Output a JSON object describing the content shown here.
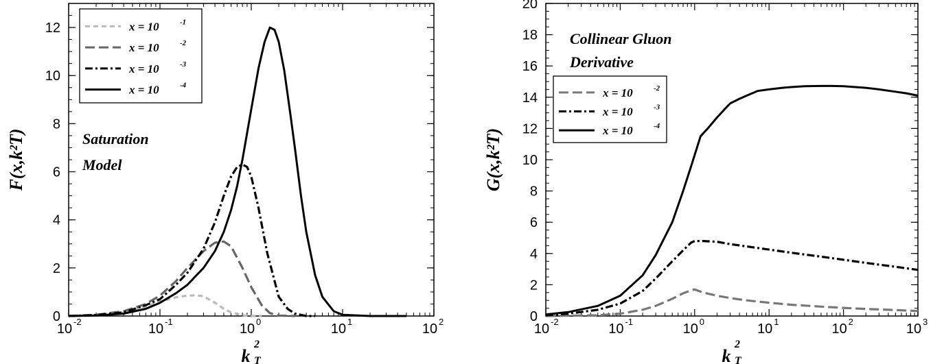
{
  "chart_data": [
    {
      "type": "line",
      "x_scale": "log",
      "xlim": [
        0.01,
        100
      ],
      "ylim": [
        0,
        13
      ],
      "x_ticks": [
        {
          "value": 0.01,
          "base": "10",
          "exp": "-2"
        },
        {
          "value": 0.1,
          "base": "10",
          "exp": "-1"
        },
        {
          "value": 1,
          "base": "10",
          "exp": "0"
        },
        {
          "value": 10,
          "base": "10",
          "exp": "1"
        },
        {
          "value": 100,
          "base": "10",
          "exp": "2"
        }
      ],
      "y_ticks": [
        "0",
        "2",
        "4",
        "6",
        "8",
        "10",
        "12"
      ],
      "xlabel": {
        "main": "k",
        "sup": "2",
        "sub": "T"
      },
      "ylabel": "F(x,k²T)",
      "annotation": [
        "Saturation",
        "Model"
      ],
      "legend_position": "top-left",
      "series": [
        {
          "name": "x = 10",
          "exp": "-1",
          "style": "short-dash",
          "color": "#bbbbbb",
          "x": [
            0.01,
            0.02,
            0.04,
            0.07,
            0.1,
            0.15,
            0.2,
            0.25,
            0.3,
            0.4,
            0.5,
            0.6,
            0.8,
            1.0,
            1.3
          ],
          "y": [
            0.0,
            0.04,
            0.15,
            0.4,
            0.6,
            0.78,
            0.85,
            0.86,
            0.82,
            0.55,
            0.3,
            0.15,
            0.03,
            0.0,
            0.0
          ]
        },
        {
          "name": "x = 10",
          "exp": "-2",
          "style": "dash",
          "color": "#666666",
          "x": [
            0.01,
            0.02,
            0.04,
            0.07,
            0.1,
            0.15,
            0.2,
            0.3,
            0.4,
            0.5,
            0.6,
            0.8,
            1.0,
            1.3,
            1.6,
            2.0,
            3.0
          ],
          "y": [
            0.0,
            0.05,
            0.2,
            0.5,
            0.85,
            1.45,
            2.0,
            2.7,
            3.05,
            3.1,
            2.9,
            2.0,
            1.2,
            0.45,
            0.12,
            0.02,
            0.0
          ]
        },
        {
          "name": "x = 10",
          "exp": "-3",
          "style": "dash-dot",
          "color": "#000000",
          "x": [
            0.01,
            0.02,
            0.04,
            0.07,
            0.1,
            0.15,
            0.2,
            0.3,
            0.4,
            0.5,
            0.6,
            0.7,
            0.8,
            0.9,
            1.0,
            1.2,
            1.5,
            2.0,
            2.5,
            3.0,
            4.0,
            5.0
          ],
          "y": [
            0.0,
            0.04,
            0.15,
            0.45,
            0.7,
            1.3,
            1.8,
            2.8,
            3.9,
            5.0,
            5.8,
            6.2,
            6.3,
            6.2,
            5.8,
            4.5,
            2.6,
            0.8,
            0.3,
            0.1,
            0.0,
            0.0
          ]
        },
        {
          "name": "x = 10",
          "exp": "-4",
          "style": "solid",
          "color": "#000000",
          "x": [
            0.01,
            0.02,
            0.04,
            0.07,
            0.1,
            0.15,
            0.2,
            0.3,
            0.4,
            0.5,
            0.6,
            0.7,
            0.8,
            1.0,
            1.2,
            1.4,
            1.6,
            1.8,
            2.0,
            2.3,
            2.7,
            3.0,
            3.5,
            4.0,
            5.0,
            6.0,
            8.0,
            10.0,
            20.0,
            50.0
          ],
          "y": [
            0.0,
            0.02,
            0.1,
            0.3,
            0.55,
            0.95,
            1.3,
            2.0,
            2.7,
            3.5,
            4.4,
            5.4,
            6.5,
            8.6,
            10.3,
            11.4,
            12.0,
            11.9,
            11.4,
            10.2,
            8.3,
            7.0,
            5.0,
            3.5,
            1.7,
            0.8,
            0.2,
            0.05,
            0.0,
            0.0
          ]
        }
      ]
    },
    {
      "type": "line",
      "x_scale": "log",
      "xlim": [
        0.01,
        1000
      ],
      "ylim": [
        0,
        20
      ],
      "x_ticks": [
        {
          "value": 0.01,
          "base": "10",
          "exp": "-2"
        },
        {
          "value": 0.1,
          "base": "10",
          "exp": "-1"
        },
        {
          "value": 1,
          "base": "10",
          "exp": "0"
        },
        {
          "value": 10,
          "base": "10",
          "exp": "1"
        },
        {
          "value": 100,
          "base": "10",
          "exp": "2"
        },
        {
          "value": 1000,
          "base": "10",
          "exp": "3"
        }
      ],
      "y_ticks": [
        "0",
        "2",
        "4",
        "6",
        "8",
        "10",
        "12",
        "14",
        "16",
        "18",
        "20"
      ],
      "xlabel": {
        "main": "k",
        "sup": "2",
        "sub": "T"
      },
      "ylabel": "G(x,k²T)",
      "annotation": [
        "Collinear Gluon",
        "Derivative"
      ],
      "legend_position": "top-left",
      "series": [
        {
          "name": "x = 10",
          "exp": "-2",
          "style": "dash",
          "color": "#777777",
          "x": [
            0.01,
            0.02,
            0.05,
            0.1,
            0.2,
            0.3,
            0.5,
            0.7,
            0.9,
            1.0,
            1.3,
            2.0,
            3.0,
            5.0,
            10.0,
            20.0,
            50.0,
            100.0,
            200.0,
            500.0,
            1000.0
          ],
          "y": [
            0.0,
            0.02,
            0.05,
            0.15,
            0.4,
            0.65,
            1.1,
            1.45,
            1.65,
            1.7,
            1.5,
            1.3,
            1.15,
            1.0,
            0.85,
            0.72,
            0.6,
            0.52,
            0.45,
            0.38,
            0.32
          ]
        },
        {
          "name": "x = 10",
          "exp": "-3",
          "style": "dash-dot",
          "color": "#000000",
          "x": [
            0.01,
            0.02,
            0.05,
            0.1,
            0.2,
            0.3,
            0.5,
            0.7,
            0.9,
            1.0,
            1.3,
            2.0,
            3.0,
            5.0,
            10.0,
            20.0,
            50.0,
            100.0,
            200.0,
            500.0,
            1000.0
          ],
          "y": [
            0.05,
            0.15,
            0.4,
            0.8,
            1.6,
            2.4,
            3.5,
            4.2,
            4.7,
            4.8,
            4.8,
            4.75,
            4.6,
            4.45,
            4.25,
            4.05,
            3.8,
            3.6,
            3.4,
            3.15,
            2.95
          ]
        },
        {
          "name": "x = 10",
          "exp": "-4",
          "style": "solid",
          "color": "#000000",
          "x": [
            0.01,
            0.02,
            0.05,
            0.1,
            0.2,
            0.3,
            0.5,
            0.7,
            0.9,
            1.0,
            1.2,
            1.5,
            2.0,
            2.5,
            3.0,
            4.0,
            5.0,
            7.0,
            10.0,
            15.0,
            20.0,
            30.0,
            50.0,
            70.0,
            100.0,
            200.0,
            300.0,
            500.0,
            700.0,
            1000.0
          ],
          "y": [
            0.1,
            0.25,
            0.65,
            1.3,
            2.6,
            3.9,
            6.0,
            8.0,
            9.6,
            10.3,
            11.5,
            12.0,
            12.7,
            13.2,
            13.6,
            13.9,
            14.1,
            14.4,
            14.5,
            14.6,
            14.65,
            14.7,
            14.72,
            14.72,
            14.7,
            14.6,
            14.5,
            14.35,
            14.25,
            14.1
          ]
        }
      ]
    }
  ]
}
